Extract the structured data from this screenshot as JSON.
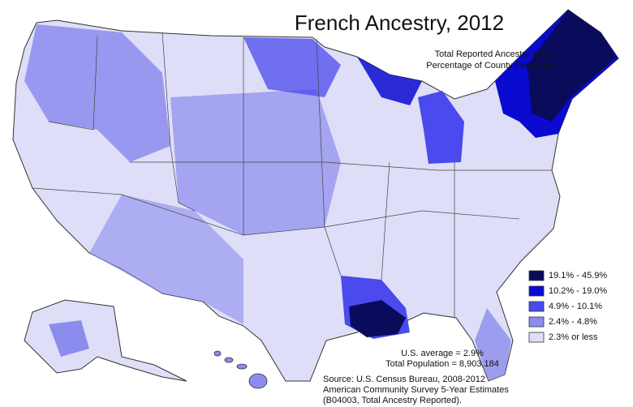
{
  "title": "French Ancestry, 2012",
  "subtitle": [
    "Total Reported Ancestry as a",
    "Percentage of County Population"
  ],
  "legend": [
    {
      "label": "19.1% - 45.9%",
      "color": "#0b0b5c"
    },
    {
      "label": "10.2% - 19.0%",
      "color": "#0a0ad0"
    },
    {
      "label": "4.9% - 10.1%",
      "color": "#4a4aee"
    },
    {
      "label": "2.4% - 4.8%",
      "color": "#8c8cee"
    },
    {
      "label": "2.3% or less",
      "color": "#dedef8"
    }
  ],
  "stats": [
    "U.S. average = 2.9%",
    "Total Population = 8,903,184"
  ],
  "source": [
    "Source:  U.S. Census Bureau, 2008-2012",
    "American Community Survey 5-Year Estimates",
    "(B04003, Total Ancestry Reported)."
  ]
}
